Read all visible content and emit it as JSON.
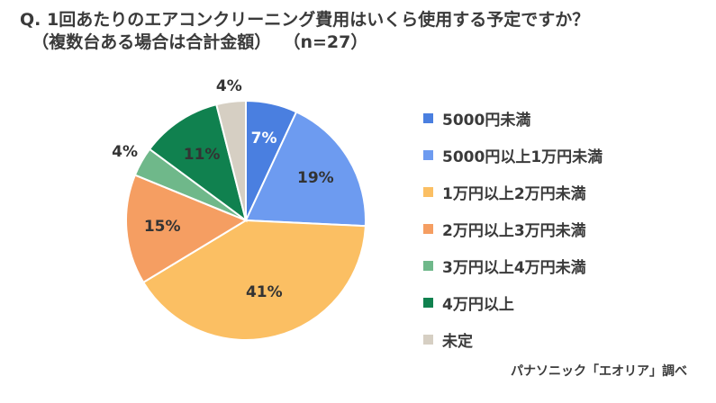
{
  "chart_data": {
    "type": "pie",
    "title": "Q. 1回あたりのエアコンクリーニング費用はいくら使用する予定ですか？",
    "subtitle": "（複数台ある場合は合計金額）",
    "sample": "（n=27）",
    "categories": [
      "5000円未満",
      "5000円以上1万円未満",
      "1万円以上2万円未満",
      "2万円以上3万円未満",
      "3万円以上4万円未満",
      "4万円以上",
      "未定"
    ],
    "values": [
      7,
      19,
      41,
      15,
      4,
      11,
      4
    ],
    "labels": [
      "7%",
      "19%",
      "41%",
      "15%",
      "4%",
      "11%",
      "4%"
    ],
    "colors": [
      "#4a7fe0",
      "#6d9bf0",
      "#fbbf63",
      "#f59e62",
      "#6fb88a",
      "#10814f",
      "#d6cfc3"
    ],
    "label_colors": [
      "#ffffff",
      "#333333",
      "#333333",
      "#333333",
      "#333333",
      "#333333",
      "#333333"
    ],
    "legend_position": "right",
    "source": "パナソニック「エオリア」調べ"
  }
}
